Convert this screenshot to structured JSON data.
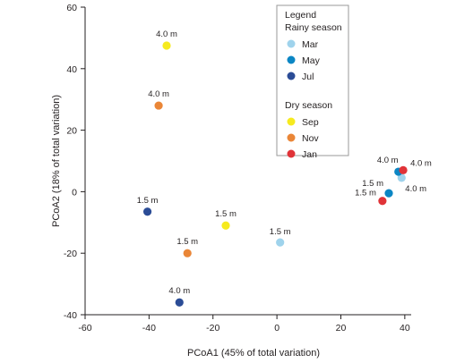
{
  "chart_data": {
    "type": "scatter",
    "title": "",
    "xlabel": "PCoA1 (45% of total variation)",
    "ylabel": "PCoA2 (18% of total variation)",
    "xlim": [
      -60,
      42
    ],
    "ylim": [
      -40,
      60
    ],
    "x_ticks": [
      -60,
      -40,
      -20,
      0,
      20,
      40
    ],
    "y_ticks": [
      -40,
      -20,
      0,
      20,
      40,
      60
    ],
    "grid": false,
    "legend": {
      "title": "Legend",
      "placement": "top-right",
      "groups": [
        {
          "title": "Rainy season",
          "entries": [
            "Mar",
            "May",
            "Jul"
          ]
        },
        {
          "title": "Dry season",
          "entries": [
            "Sep",
            "Nov",
            "Jan"
          ]
        }
      ]
    },
    "colors": {
      "Mar": "#9fd3ec",
      "May": "#0b86c4",
      "Jul": "#2b4c96",
      "Sep": "#f6ea1e",
      "Nov": "#ea8637",
      "Jan": "#e03338"
    },
    "series": [
      {
        "name": "Mar",
        "points": [
          {
            "x": 1,
            "y": -16.5,
            "label": "1.5 m"
          },
          {
            "x": 39,
            "y": 4.5,
            "label": "4.0 m"
          }
        ]
      },
      {
        "name": "May",
        "points": [
          {
            "x": 35,
            "y": -0.5,
            "label": "1.5 m"
          },
          {
            "x": 38,
            "y": 6.5,
            "label": "4.0 m"
          }
        ]
      },
      {
        "name": "Jul",
        "points": [
          {
            "x": -40.5,
            "y": -6.5,
            "label": "1.5 m"
          },
          {
            "x": -30.5,
            "y": -36,
            "label": "4.0 m"
          }
        ]
      },
      {
        "name": "Sep",
        "points": [
          {
            "x": -16,
            "y": -11,
            "label": "1.5 m"
          },
          {
            "x": -34.5,
            "y": 47.5,
            "label": "4.0 m"
          }
        ]
      },
      {
        "name": "Nov",
        "points": [
          {
            "x": -28,
            "y": -20,
            "label": "1.5 m"
          },
          {
            "x": -37,
            "y": 28,
            "label": "4.0 m"
          }
        ]
      },
      {
        "name": "Jan",
        "points": [
          {
            "x": 33,
            "y": -3,
            "label": "1.5 m"
          },
          {
            "x": 39.5,
            "y": 7,
            "label": "4.0 m"
          }
        ]
      }
    ]
  }
}
